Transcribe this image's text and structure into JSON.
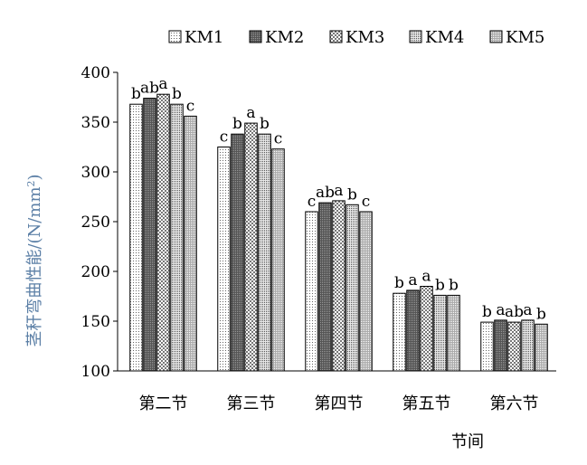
{
  "chart_data": {
    "type": "bar",
    "ylabel": "茎秆弯曲性能/(N/mm2)",
    "ylabel_main": "茎秆弯曲性能/(N/mm",
    "ylabel_sup": "2",
    "ylabel_close": ")",
    "xlabel": "节间",
    "ylim": [
      100,
      400
    ],
    "yticks": [
      100,
      150,
      200,
      250,
      300,
      350,
      400
    ],
    "grid": false,
    "legend_position": "top",
    "categories": [
      "第二节",
      "第三节",
      "第四节",
      "第五节",
      "第六节"
    ],
    "series": [
      {
        "name": "KM1",
        "values": [
          368,
          325,
          260,
          178,
          149
        ],
        "letters": [
          "b",
          "c",
          "c",
          "b",
          "b"
        ]
      },
      {
        "name": "KM2",
        "values": [
          374,
          338,
          269,
          181,
          151
        ],
        "letters": [
          "ab",
          "b",
          "ab",
          "a",
          "a"
        ]
      },
      {
        "name": "KM3",
        "values": [
          378,
          349,
          271,
          185,
          149
        ],
        "letters": [
          "a",
          "a",
          "a",
          "a",
          "ab"
        ]
      },
      {
        "name": "KM4",
        "values": [
          368,
          338,
          267,
          176,
          151
        ],
        "letters": [
          "b",
          "b",
          "b",
          "b",
          "a"
        ]
      },
      {
        "name": "KM5",
        "values": [
          356,
          323,
          260,
          176,
          147
        ],
        "letters": [
          "c",
          "c",
          "c",
          "b",
          "b"
        ]
      }
    ],
    "patterns": [
      "light-dots",
      "dark-dots",
      "checker",
      "dense-dots",
      "medium-dots"
    ]
  }
}
